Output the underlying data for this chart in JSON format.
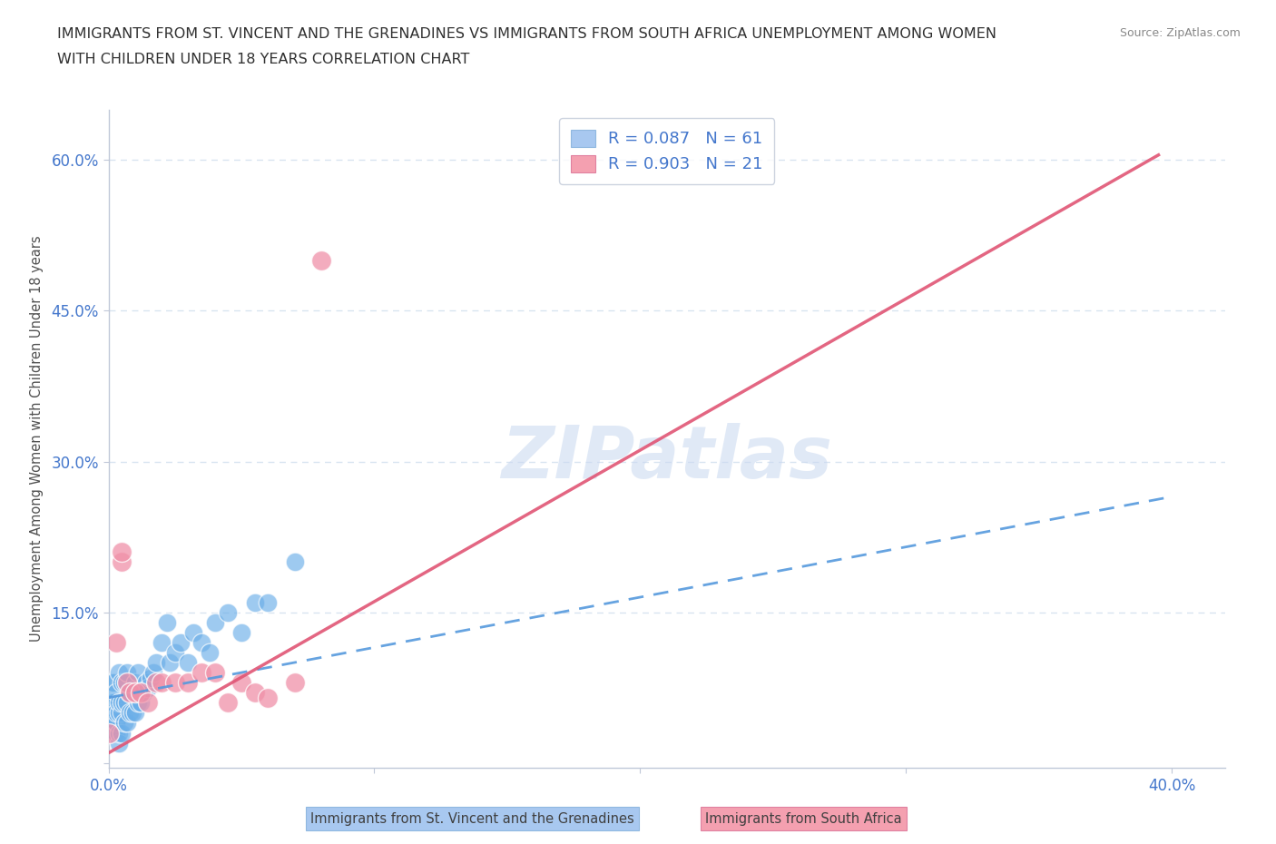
{
  "title_line1": "IMMIGRANTS FROM ST. VINCENT AND THE GRENADINES VS IMMIGRANTS FROM SOUTH AFRICA UNEMPLOYMENT AMONG WOMEN",
  "title_line2": "WITH CHILDREN UNDER 18 YEARS CORRELATION CHART",
  "source_text": "Source: ZipAtlas.com",
  "ylabel": "Unemployment Among Women with Children Under 18 years",
  "xlim": [
    0.0,
    0.42
  ],
  "ylim": [
    -0.005,
    0.65
  ],
  "legend_entry1_label": "R = 0.087   N = 61",
  "legend_entry2_label": "R = 0.903   N = 21",
  "legend_color1": "#a8c8f0",
  "legend_color2": "#f4a0b0",
  "trend_color1": "#5599dd",
  "trend_color2": "#e05575",
  "dot_color1": "#6aaee8",
  "dot_color2": "#f090a8",
  "watermark_text": "ZIPatlas",
  "watermark_color": "#c8d8f0",
  "footer_label1": "Immigrants from St. Vincent and the Grenadines",
  "footer_label2": "Immigrants from South Africa",
  "blue_x": [
    0.0,
    0.0,
    0.0,
    0.0,
    0.001,
    0.001,
    0.001,
    0.002,
    0.002,
    0.002,
    0.002,
    0.002,
    0.003,
    0.003,
    0.003,
    0.003,
    0.003,
    0.004,
    0.004,
    0.004,
    0.004,
    0.004,
    0.005,
    0.005,
    0.005,
    0.005,
    0.006,
    0.006,
    0.006,
    0.007,
    0.007,
    0.007,
    0.008,
    0.008,
    0.009,
    0.01,
    0.01,
    0.011,
    0.011,
    0.012,
    0.013,
    0.014,
    0.015,
    0.016,
    0.017,
    0.018,
    0.02,
    0.022,
    0.023,
    0.025,
    0.027,
    0.03,
    0.032,
    0.035,
    0.038,
    0.04,
    0.045,
    0.05,
    0.055,
    0.06,
    0.07
  ],
  "blue_y": [
    0.05,
    0.04,
    0.06,
    0.03,
    0.04,
    0.06,
    0.08,
    0.03,
    0.04,
    0.05,
    0.06,
    0.08,
    0.03,
    0.04,
    0.04,
    0.05,
    0.07,
    0.02,
    0.03,
    0.05,
    0.06,
    0.09,
    0.03,
    0.05,
    0.06,
    0.08,
    0.04,
    0.06,
    0.08,
    0.04,
    0.06,
    0.09,
    0.05,
    0.07,
    0.05,
    0.05,
    0.08,
    0.06,
    0.09,
    0.06,
    0.07,
    0.08,
    0.075,
    0.085,
    0.09,
    0.1,
    0.12,
    0.14,
    0.1,
    0.11,
    0.12,
    0.1,
    0.13,
    0.12,
    0.11,
    0.14,
    0.15,
    0.13,
    0.16,
    0.16,
    0.2
  ],
  "pink_x": [
    0.0,
    0.003,
    0.005,
    0.005,
    0.007,
    0.008,
    0.01,
    0.012,
    0.015,
    0.018,
    0.02,
    0.025,
    0.03,
    0.035,
    0.04,
    0.045,
    0.05,
    0.055,
    0.06,
    0.07,
    0.08
  ],
  "pink_y": [
    0.03,
    0.12,
    0.2,
    0.21,
    0.08,
    0.07,
    0.07,
    0.07,
    0.06,
    0.08,
    0.08,
    0.08,
    0.08,
    0.09,
    0.09,
    0.06,
    0.08,
    0.07,
    0.065,
    0.08,
    0.5
  ],
  "trend1_x0": 0.0,
  "trend1_y0": 0.065,
  "trend1_x1": 0.4,
  "trend1_y1": 0.265,
  "trend2_x0": 0.0,
  "trend2_y0": 0.01,
  "trend2_x1": 0.395,
  "trend2_y1": 0.605,
  "background_color": "#ffffff",
  "grid_color": "#d8e4f0",
  "title_color": "#303030",
  "tick_label_color": "#4477cc",
  "legend_R_N_color": "#4477cc"
}
